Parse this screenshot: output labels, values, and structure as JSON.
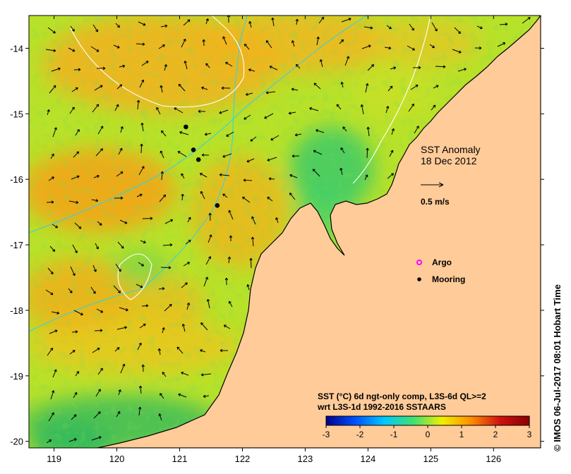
{
  "chart_data": {
    "type": "heatmap",
    "title": "SST Anomaly",
    "date": "18 Dec 2012",
    "region": {
      "lon_range": [
        118.6,
        126.75
      ],
      "lat_range": [
        -20.1,
        -13.5
      ]
    },
    "x_ticks": [
      "119",
      "120",
      "121",
      "122",
      "123",
      "124",
      "125",
      "126"
    ],
    "x_tick_values": [
      119,
      120,
      121,
      122,
      123,
      124,
      125,
      126
    ],
    "y_ticks": [
      "-14",
      "-15",
      "-16",
      "-17",
      "-18",
      "-19",
      "-20"
    ],
    "y_tick_values": [
      -14,
      -15,
      -16,
      -17,
      -18,
      -19,
      -20
    ],
    "colorbar": {
      "ticks": [
        "-3",
        "-2",
        "-1",
        "0",
        "1",
        "2",
        "3"
      ],
      "tick_values": [
        -3,
        -2,
        -1,
        0,
        1,
        2,
        3
      ],
      "range": [
        -3,
        3
      ],
      "colors": [
        "#00008b",
        "#0050ff",
        "#00c8ff",
        "#40e070",
        "#f0f000",
        "#ff8c00",
        "#d01010",
        "#8b0000"
      ]
    },
    "caption_line1": "SST (°C) 6d ngt-only comp, L3S-6d QL>=2",
    "caption_line2": "wrt L3S-1d 1992-2016 SSTAARS",
    "current_scale_label": "0.5 m/s",
    "current_scale_value": 0.5,
    "legend": [
      {
        "label": "Argo",
        "marker": "magenta-circle",
        "color": "#ff00ff"
      },
      {
        "label": "Mooring",
        "marker": "black-asterisk",
        "color": "#000000"
      }
    ],
    "moorings": [
      {
        "lon": 121.1,
        "lat": -15.2
      },
      {
        "lon": 121.22,
        "lat": -15.55
      },
      {
        "lon": 121.3,
        "lat": -15.7
      },
      {
        "lon": 121.6,
        "lat": -16.4
      }
    ],
    "land_color": "#ffcb99"
  },
  "credit": "© IMOS 06-Jul-2017 08:01 Hobart Time"
}
